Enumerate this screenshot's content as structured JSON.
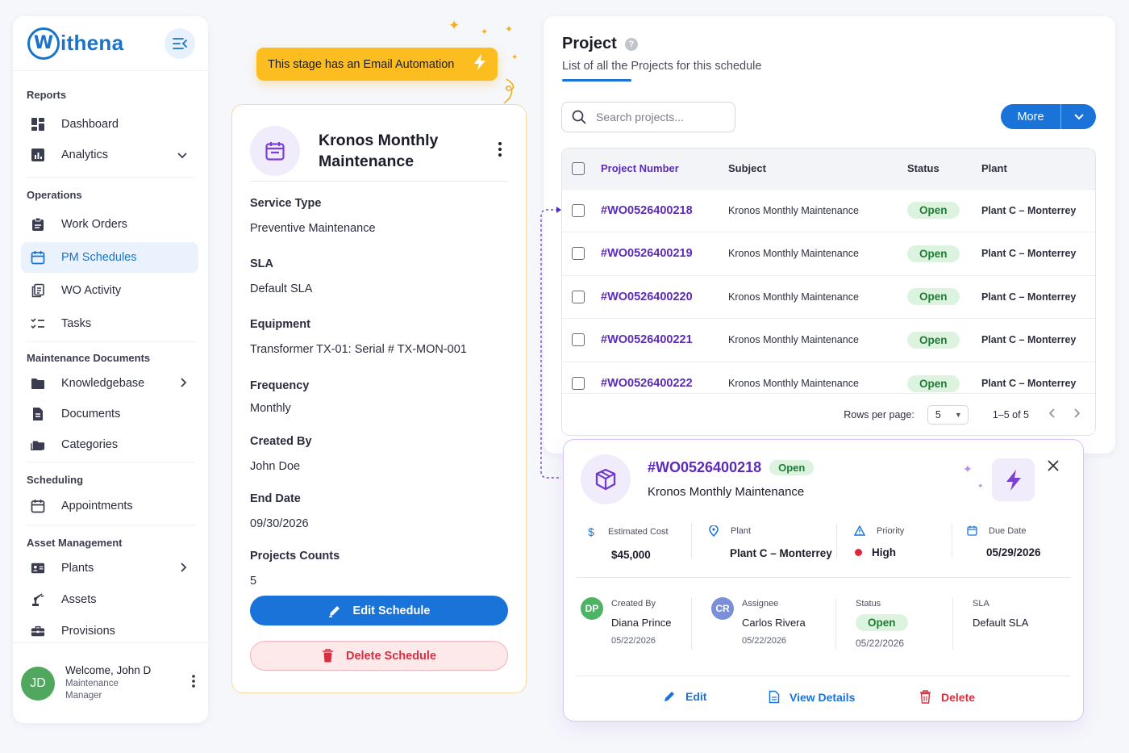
{
  "brand": {
    "logo_letter": "W",
    "name": "ithena"
  },
  "sidebar": {
    "sections": {
      "reports": "Reports",
      "operations": "Operations",
      "maintenance_docs": "Maintenance Documents",
      "scheduling": "Scheduling",
      "asset_mgmt": "Asset Management"
    },
    "items": {
      "dashboard": "Dashboard",
      "analytics": "Analytics",
      "work_orders": "Work Orders",
      "pm_schedules": "PM Schedules",
      "wo_activity": "WO Activity",
      "tasks": "Tasks",
      "knowledgebase": "Knowledgebase",
      "documents": "Documents",
      "categories": "Categories",
      "appointments": "Appointments",
      "plants": "Plants",
      "assets": "Assets",
      "provisions": "Provisions"
    },
    "active_item": "pm_schedules",
    "user": {
      "initials": "JD",
      "welcome": "Welcome, John D",
      "role": "Maintenance Manager"
    }
  },
  "automation_banner": {
    "text": "This stage has an Email Automation"
  },
  "schedule": {
    "title": "Kronos Monthly Maintenance",
    "fields": [
      {
        "label": "Service Type",
        "value": "Preventive Maintenance"
      },
      {
        "label": "SLA",
        "value": "Default SLA"
      },
      {
        "label": "Equipment",
        "value": "Transformer TX-01: Serial # TX-MON-001"
      },
      {
        "label": "Frequency",
        "value": "Monthly"
      },
      {
        "label": "Created By",
        "value": "John Doe"
      },
      {
        "label": "End Date",
        "value": "09/30/2026"
      },
      {
        "label": "Projects Counts",
        "value": "5"
      }
    ],
    "edit_label": "Edit Schedule",
    "delete_label": "Delete Schedule"
  },
  "project_panel": {
    "title": "Project",
    "subtitle": "List of all the Projects for this schedule",
    "search_placeholder": "Search projects...",
    "more_label": "More",
    "columns": {
      "number": "Project Number",
      "subject": "Subject",
      "status": "Status",
      "plant": "Plant"
    },
    "rows": [
      {
        "number": "#WO0526400218",
        "subject": "Kronos Monthly Maintenance",
        "status": "Open",
        "plant": "Plant C – Monterrey"
      },
      {
        "number": "#WO0526400219",
        "subject": "Kronos Monthly Maintenance",
        "status": "Open",
        "plant": "Plant C – Monterrey"
      },
      {
        "number": "#WO0526400220",
        "subject": "Kronos Monthly Maintenance",
        "status": "Open",
        "plant": "Plant C – Monterrey"
      },
      {
        "number": "#WO0526400221",
        "subject": "Kronos Monthly Maintenance",
        "status": "Open",
        "plant": "Plant C – Monterrey"
      },
      {
        "number": "#WO0526400222",
        "subject": "Kronos Monthly Maintenance",
        "status": "Open",
        "plant": "Plant C – Monterrey"
      }
    ],
    "pagination": {
      "rows_per_page_label": "Rows per page:",
      "rows_per_page": "5",
      "range": "1–5 of 5"
    }
  },
  "detail": {
    "number": "#WO0526400218",
    "status": "Open",
    "subject": "Kronos Monthly Maintenance",
    "metrics": {
      "cost": {
        "label": "Estimated Cost",
        "value": "$45,000"
      },
      "plant": {
        "label": "Plant",
        "value": "Plant C – Monterrey"
      },
      "priority": {
        "label": "Priority",
        "value": "High"
      },
      "due": {
        "label": "Due Date",
        "value": "05/29/2026"
      }
    },
    "people": {
      "created_by": {
        "initials": "DP",
        "label": "Created By",
        "name": "Diana Prince",
        "date": "05/22/2026"
      },
      "assignee": {
        "initials": "CR",
        "label": "Assignee",
        "name": "Carlos Rivera",
        "date": "05/22/2026"
      },
      "status": {
        "label": "Status",
        "value": "Open",
        "date": "05/22/2026"
      },
      "sla": {
        "label": "SLA",
        "value": "Default SLA"
      }
    },
    "actions": {
      "edit": "Edit",
      "view": "View Details",
      "delete": "Delete"
    }
  },
  "colors": {
    "primary": "#1a73d9",
    "purple": "#5c2bb8",
    "amber": "#fbbd20",
    "open_bg": "#dcf3df",
    "open_text": "#1f7a34",
    "danger": "#d6303f"
  }
}
